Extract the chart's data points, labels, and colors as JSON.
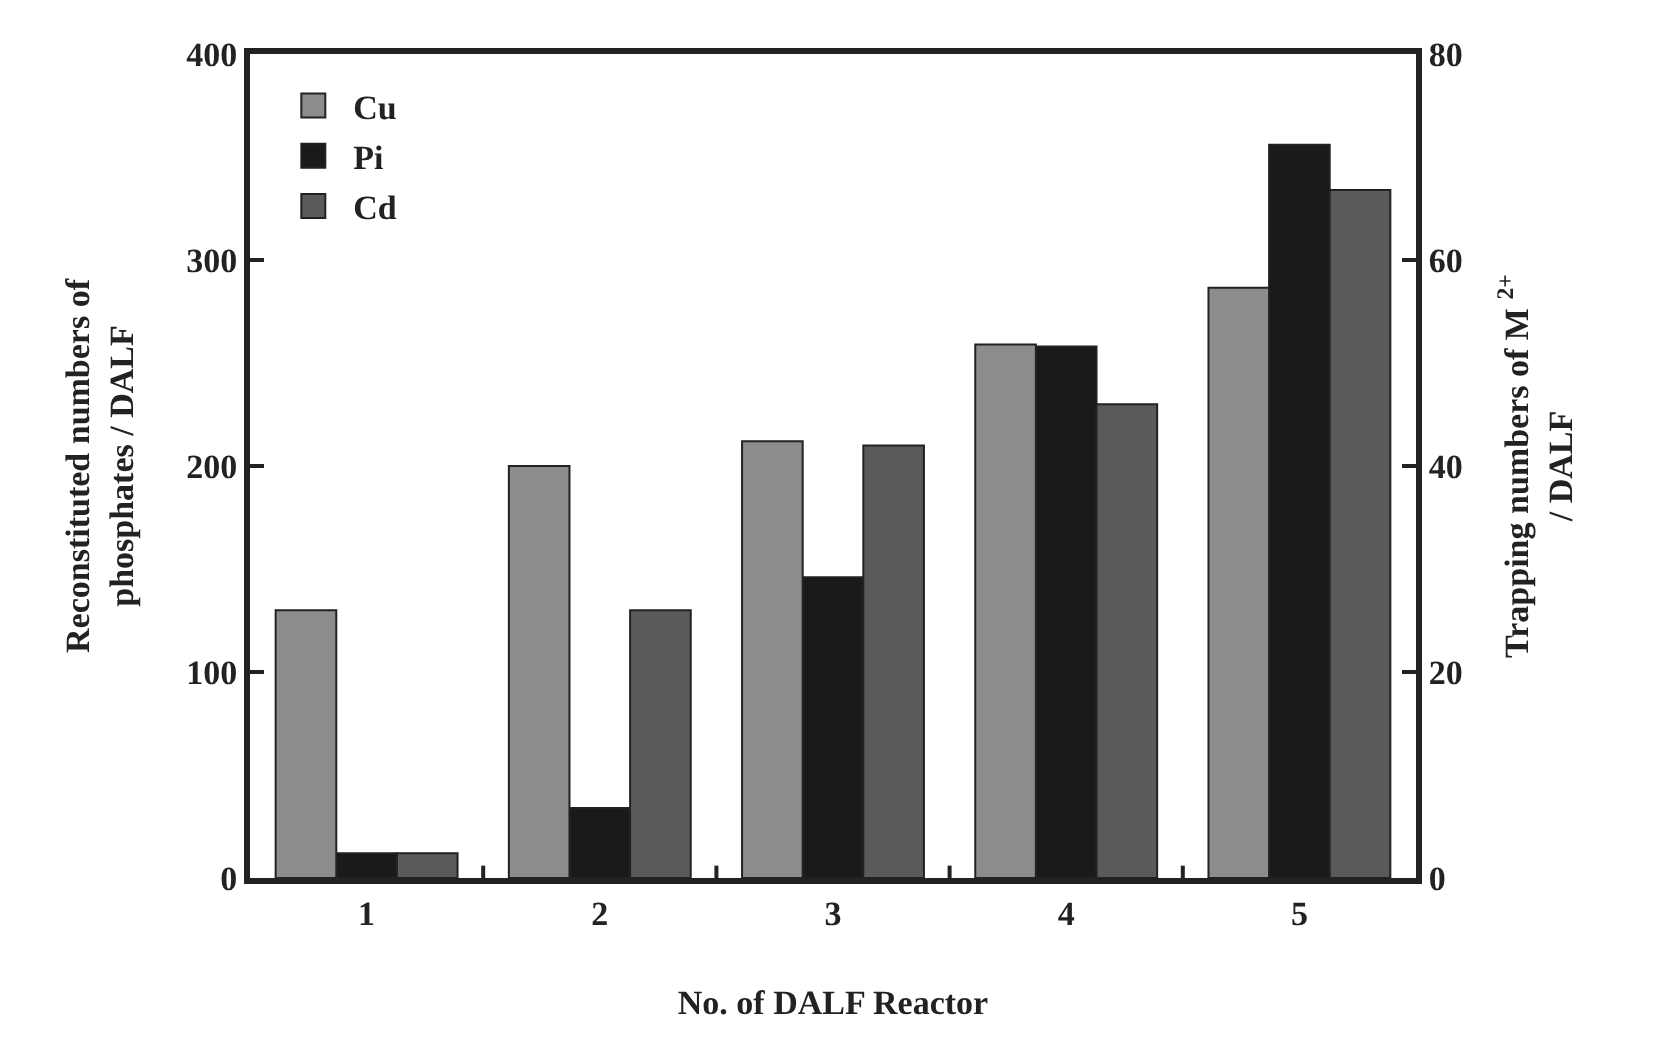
{
  "chart_data": {
    "type": "bar",
    "xlabel": "No. of DALF Reactor",
    "ylabel": "Reconstituted numbers of\nphosphates / DALF",
    "y2label": "Trapping numbers of M $^{2+}$\n/ DALF",
    "categories": [
      "1",
      "2",
      "3",
      "4",
      "5"
    ],
    "series": [
      {
        "name": "Cu",
        "color": "#8c8c8c",
        "axis": "y2",
        "values": [
          26,
          40,
          42.4,
          51.8,
          57.3
        ]
      },
      {
        "name": "Pi",
        "color": "#1a1a1a",
        "values": [
          12,
          34,
          146,
          258,
          356
        ]
      },
      {
        "name": "Cd",
        "color": "#5a5a5a",
        "axis": "y2",
        "values": [
          2.4,
          26,
          42,
          46,
          66.8
        ]
      }
    ],
    "ylim": [
      0,
      400
    ],
    "yticks": [
      0,
      100,
      200,
      300,
      400
    ],
    "y2lim": [
      0,
      80
    ],
    "y2ticks": [
      0,
      20,
      40,
      60,
      80
    ],
    "legend": "top left",
    "grid": false
  }
}
